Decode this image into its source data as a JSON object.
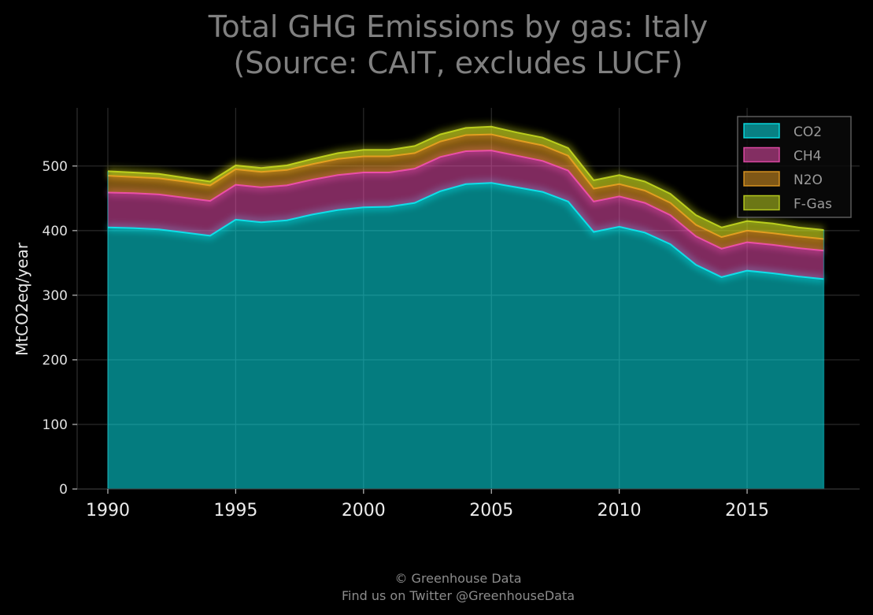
{
  "title_line1": "Total GHG Emissions by gas: Italy",
  "title_line2": "(Source: CAIT, excludes LUCF)",
  "footer_line1": "© Greenhouse Data",
  "footer_line2": "Find us on Twitter @GreenhouseData",
  "colors": {
    "background": "#000000",
    "CO2": "#08F7FE",
    "CH4": "#FE53BB",
    "N2O": "#F5A623",
    "F-Gas": "#D0E521"
  },
  "chart_data": {
    "type": "area",
    "stacked": true,
    "ylabel": "MtCO2eq/year",
    "xlabel": "",
    "xlim": [
      1988.8,
      2019.4
    ],
    "ylim": [
      0,
      590
    ],
    "xticks": [
      1990,
      1995,
      2000,
      2005,
      2010,
      2015
    ],
    "yticks": [
      0,
      100,
      200,
      300,
      400,
      500
    ],
    "grid": true,
    "legend_position": "top-right",
    "x": [
      1990,
      1991,
      1992,
      1993,
      1994,
      1995,
      1996,
      1997,
      1998,
      1999,
      2000,
      2001,
      2002,
      2003,
      2004,
      2005,
      2006,
      2007,
      2008,
      2009,
      2010,
      2011,
      2012,
      2013,
      2014,
      2015,
      2016,
      2017,
      2018
    ],
    "series": [
      {
        "name": "CO2",
        "values": [
          405,
          404,
          402,
          397,
          392,
          417,
          413,
          416,
          425,
          432,
          436,
          437,
          443,
          461,
          472,
          474,
          467,
          460,
          445,
          398,
          406,
          397,
          379,
          347,
          328,
          338,
          334,
          329,
          325
        ]
      },
      {
        "name": "CH4",
        "values": [
          54,
          54,
          54,
          54,
          54,
          54,
          54,
          54,
          54,
          54,
          54,
          53,
          53,
          53,
          51,
          50,
          49,
          48,
          48,
          47,
          47,
          46,
          45,
          44,
          44,
          44,
          44,
          44,
          44
        ]
      },
      {
        "name": "N2O",
        "values": [
          26,
          25,
          25,
          25,
          24,
          24,
          24,
          24,
          24,
          25,
          25,
          25,
          24,
          24,
          25,
          25,
          24,
          24,
          23,
          20,
          19,
          19,
          19,
          18,
          18,
          18,
          18,
          18,
          18
        ]
      },
      {
        "name": "F-Gas",
        "values": [
          7,
          7,
          7,
          6,
          6,
          6,
          6,
          7,
          8,
          9,
          10,
          10,
          11,
          11,
          11,
          12,
          12,
          12,
          12,
          13,
          14,
          14,
          14,
          15,
          15,
          15,
          15,
          14,
          14
        ]
      }
    ]
  }
}
